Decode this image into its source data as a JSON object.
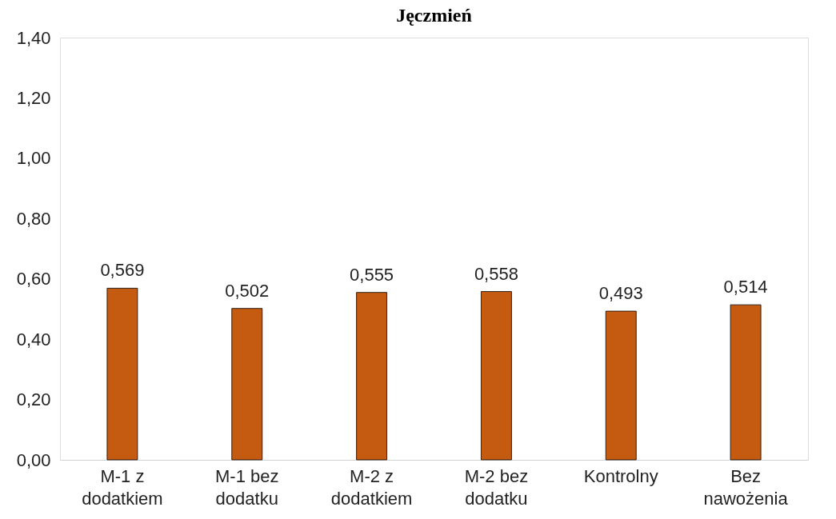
{
  "chart_data": {
    "type": "bar",
    "title": "Jęczmień",
    "categories": [
      "M-1 z dodatkiem",
      "M-1 bez dodatku",
      "M-2 z dodatkiem",
      "M-2 bez dodatku",
      "Kontrolny",
      "Bez nawożenia"
    ],
    "values": [
      0.569,
      0.502,
      0.555,
      0.558,
      0.493,
      0.514
    ],
    "value_labels": [
      "0,569",
      "0,502",
      "0,555",
      "0,558",
      "0,493",
      "0,514"
    ],
    "color": "#c55a11",
    "ylim": [
      0,
      1.4
    ],
    "yticks": [
      {
        "value": 0,
        "label": "0,00"
      },
      {
        "value": 0.2,
        "label": "0,20"
      },
      {
        "value": 0.4,
        "label": "0,40"
      },
      {
        "value": 0.6,
        "label": "0,60"
      },
      {
        "value": 0.8,
        "label": "0,80"
      },
      {
        "value": 1.0,
        "label": "1,00"
      },
      {
        "value": 1.2,
        "label": "1,20"
      },
      {
        "value": 1.4,
        "label": "1,40"
      }
    ],
    "grid": false
  }
}
